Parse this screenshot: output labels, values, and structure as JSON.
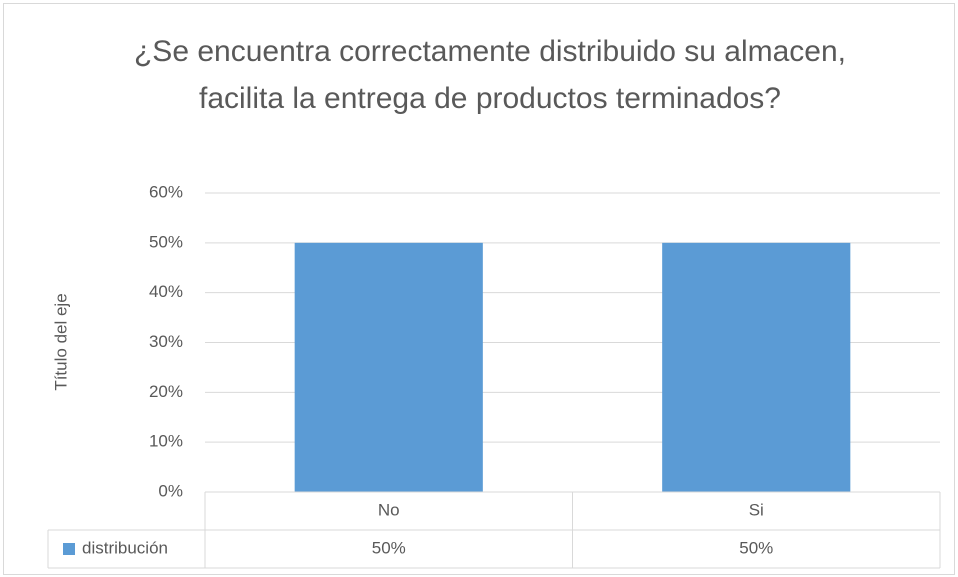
{
  "chart_data": {
    "type": "bar",
    "title": "¿Se encuentra correctamente distribuido su almacen, facilita la entrega de productos terminados?",
    "y_label": "Título del eje",
    "categories": [
      "No",
      "Si"
    ],
    "series": [
      {
        "name": "distribución",
        "color": "#5b9bd5",
        "values": [
          50,
          50
        ],
        "value_labels": [
          "50%",
          "50%"
        ]
      }
    ],
    "ylim": [
      0,
      60
    ],
    "yticks": [
      {
        "value": 0,
        "label": "0%"
      },
      {
        "value": 10,
        "label": "10%"
      },
      {
        "value": 20,
        "label": "20%"
      },
      {
        "value": 30,
        "label": "30%"
      },
      {
        "value": 40,
        "label": "40%"
      },
      {
        "value": 50,
        "label": "50%"
      },
      {
        "value": 60,
        "label": "60%"
      }
    ],
    "grid": true,
    "data_table": true
  }
}
